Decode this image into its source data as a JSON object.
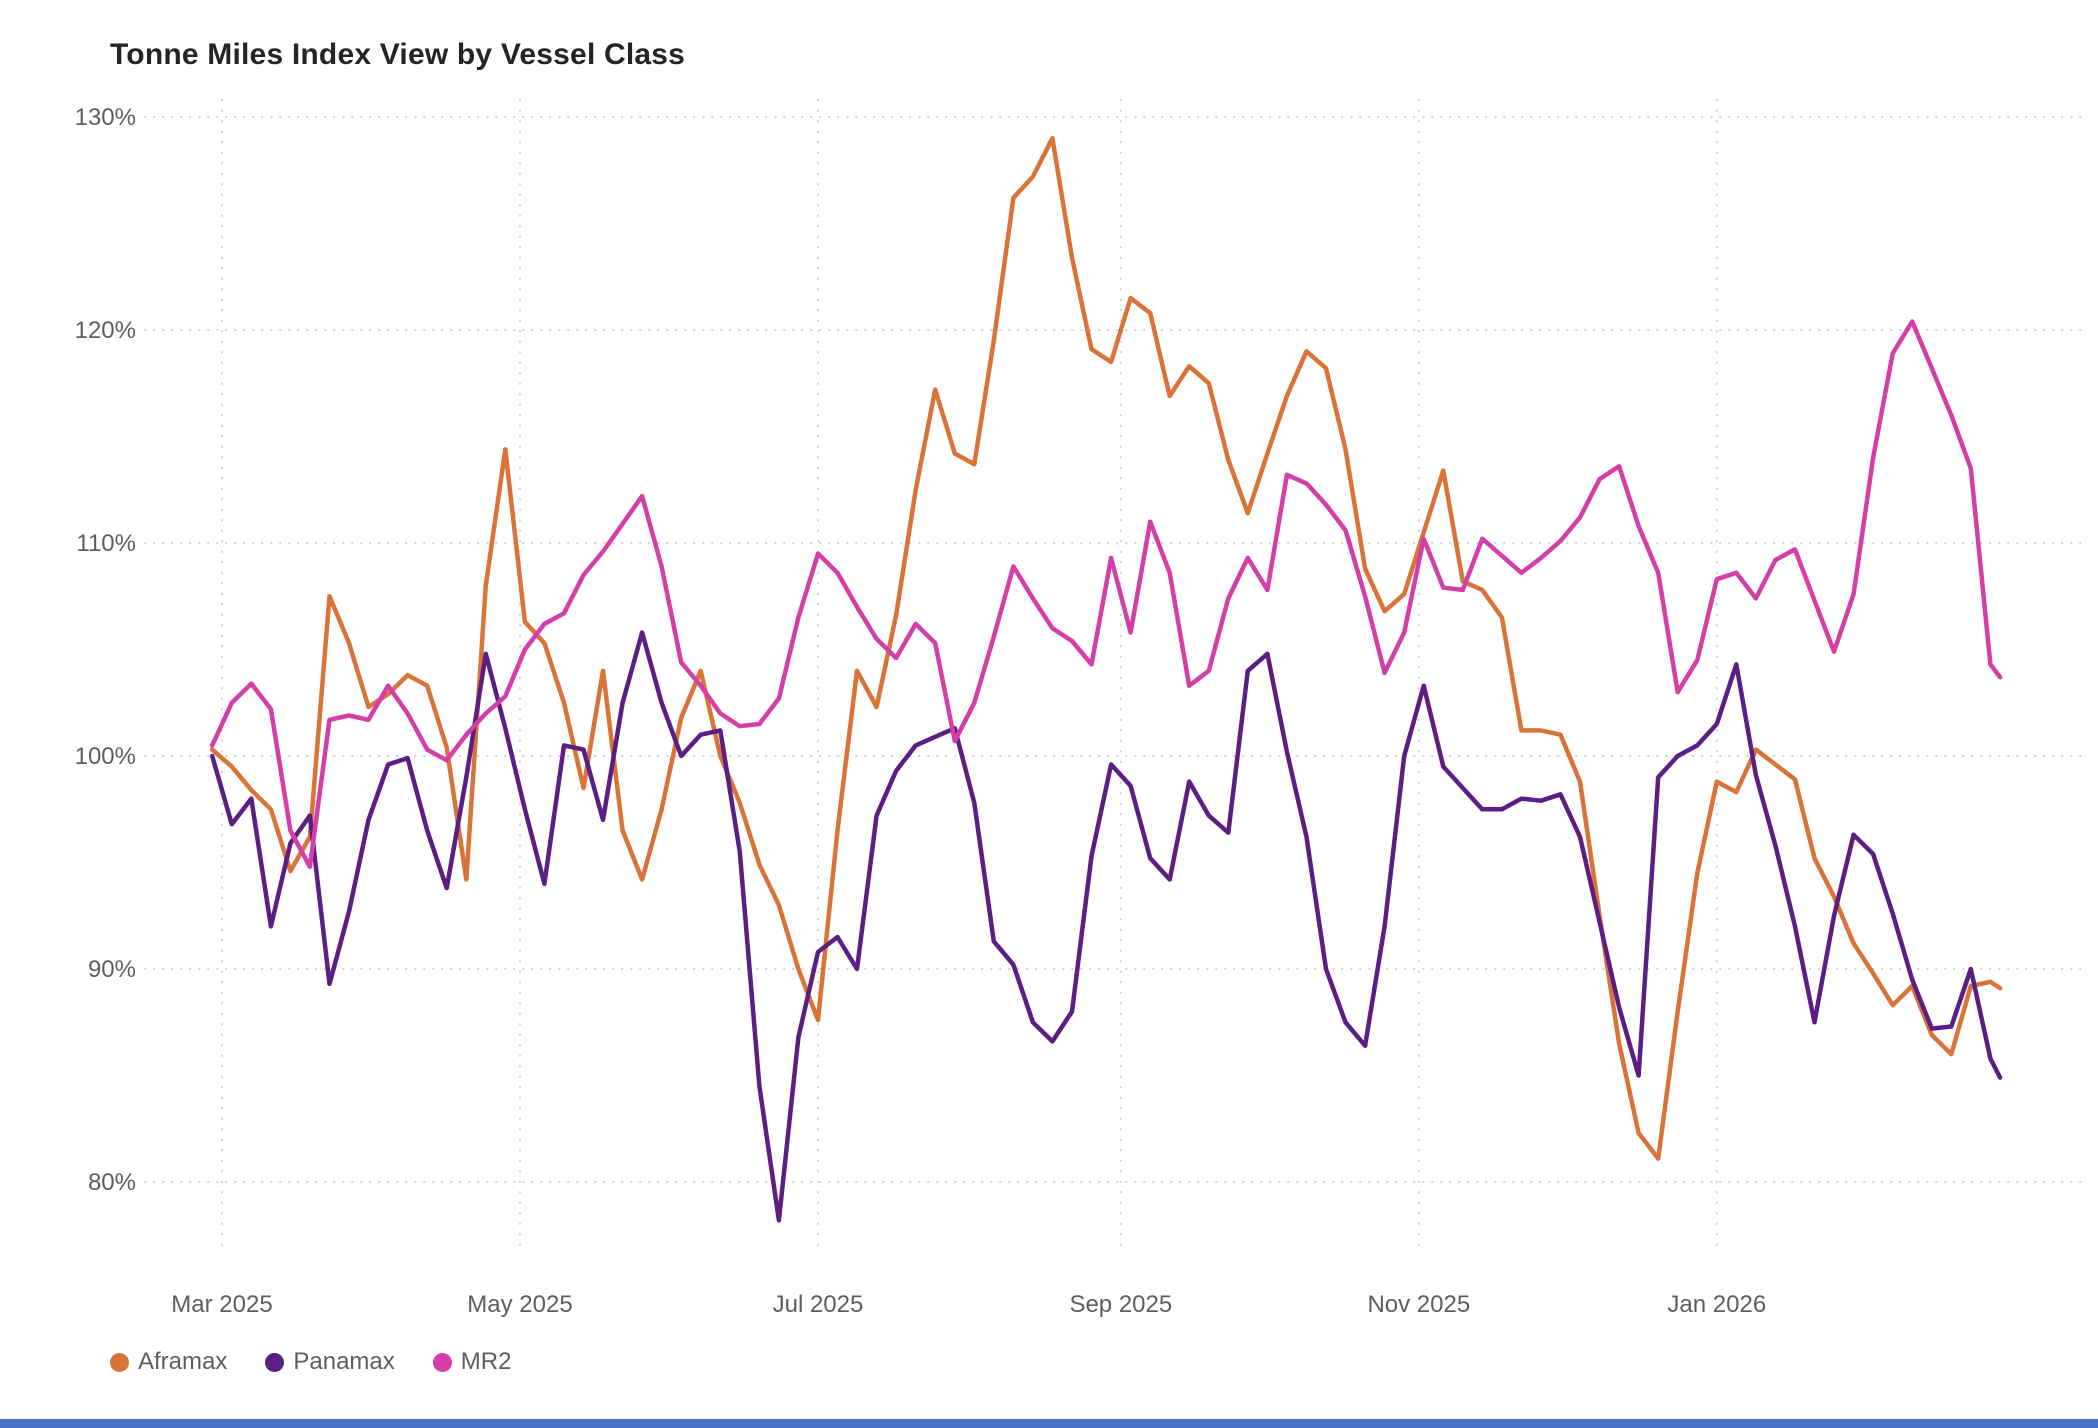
{
  "title": "Tonne Miles Index View by Vessel Class",
  "legend": {
    "items": [
      {
        "label": "Aframax",
        "color": "#D97338"
      },
      {
        "label": "Panamax",
        "color": "#5C1E82"
      },
      {
        "label": "MR2",
        "color": "#D33EA8"
      }
    ]
  },
  "accent_bar_color": "#4472C4",
  "grid_color": "#D1D1D1",
  "axis_text_color": "#605E5C",
  "chart_data": {
    "type": "line",
    "title": "Tonne Miles Index View by Vessel Class",
    "xlabel": "",
    "ylabel": "",
    "grid": "dotted",
    "legend_position": "bottom-left",
    "y_axis": {
      "tick_values": [
        130,
        120,
        110,
        100,
        90,
        80
      ],
      "tick_labels": [
        "130%",
        "120%",
        "110%",
        "100%",
        "90%",
        "80%"
      ],
      "range": [
        76.4,
        130.8
      ]
    },
    "x_axis": {
      "tick_dates": [
        "2025-03-01",
        "2025-05-01",
        "2025-07-01",
        "2025-09-01",
        "2025-11-01",
        "2026-01-01"
      ],
      "tick_labels": [
        "Mar 2025",
        "May 2025",
        "Jul 2025",
        "Sep 2025",
        "Nov 2025",
        "Jan 2026"
      ],
      "range": [
        "2025-02-27",
        "2026-02-28"
      ]
    },
    "dates": [
      "2025-02-27",
      "2025-03-03",
      "2025-03-07",
      "2025-03-11",
      "2025-03-15",
      "2025-03-19",
      "2025-03-23",
      "2025-03-27",
      "2025-03-31",
      "2025-04-04",
      "2025-04-08",
      "2025-04-12",
      "2025-04-16",
      "2025-04-20",
      "2025-04-24",
      "2025-04-28",
      "2025-05-02",
      "2025-05-06",
      "2025-05-10",
      "2025-05-14",
      "2025-05-18",
      "2025-05-22",
      "2025-05-26",
      "2025-05-30",
      "2025-06-03",
      "2025-06-07",
      "2025-06-11",
      "2025-06-15",
      "2025-06-19",
      "2025-06-23",
      "2025-06-27",
      "2025-07-01",
      "2025-07-05",
      "2025-07-09",
      "2025-07-13",
      "2025-07-17",
      "2025-07-21",
      "2025-07-25",
      "2025-07-29",
      "2025-08-02",
      "2025-08-06",
      "2025-08-10",
      "2025-08-14",
      "2025-08-18",
      "2025-08-22",
      "2025-08-26",
      "2025-08-30",
      "2025-09-03",
      "2025-09-07",
      "2025-09-11",
      "2025-09-15",
      "2025-09-19",
      "2025-09-23",
      "2025-09-27",
      "2025-10-01",
      "2025-10-05",
      "2025-10-09",
      "2025-10-13",
      "2025-10-17",
      "2025-10-21",
      "2025-10-25",
      "2025-10-29",
      "2025-11-02",
      "2025-11-06",
      "2025-11-10",
      "2025-11-14",
      "2025-11-18",
      "2025-11-22",
      "2025-11-26",
      "2025-11-30",
      "2025-12-04",
      "2025-12-08",
      "2025-12-12",
      "2025-12-16",
      "2025-12-20",
      "2025-12-24",
      "2025-12-28",
      "2026-01-01",
      "2026-01-05",
      "2026-01-09",
      "2026-01-13",
      "2026-01-17",
      "2026-01-21",
      "2026-01-25",
      "2026-01-29",
      "2026-02-02",
      "2026-02-06",
      "2026-02-10",
      "2026-02-14",
      "2026-02-18",
      "2026-02-22",
      "2026-02-26",
      "2026-02-28"
    ],
    "series": [
      {
        "name": "Aframax",
        "color": "#D97338",
        "values": [
          100.3,
          99.5,
          98.4,
          97.5,
          94.6,
          96.2,
          107.5,
          105.3,
          102.3,
          102.9,
          103.8,
          103.3,
          100.4,
          94.2,
          108.0,
          114.4,
          106.3,
          105.3,
          102.5,
          98.5,
          104.0,
          96.5,
          94.2,
          97.5,
          101.8,
          104.0,
          100.0,
          97.8,
          94.9,
          93.0,
          90.0,
          87.6,
          96.5,
          104.0,
          102.3,
          106.6,
          112.5,
          117.2,
          114.2,
          113.7,
          119.5,
          126.2,
          127.2,
          129.0,
          123.4,
          119.1,
          118.5,
          121.5,
          120.8,
          116.9,
          118.3,
          117.5,
          113.9,
          111.4,
          114.2,
          116.9,
          119.0,
          118.2,
          114.4,
          108.8,
          106.8,
          107.6,
          110.5,
          113.4,
          108.2,
          107.8,
          106.5,
          101.2,
          101.2,
          101.0,
          98.8,
          92.5,
          86.5,
          82.3,
          81.1,
          88.0,
          94.5,
          98.8,
          98.3,
          100.3,
          99.6,
          98.9,
          95.2,
          93.4,
          91.2,
          89.8,
          88.3,
          89.2,
          86.9,
          86.0,
          89.2,
          89.4,
          89.1
        ]
      },
      {
        "name": "Panamax",
        "color": "#5C1E82",
        "values": [
          100.0,
          96.8,
          98.0,
          92.0,
          95.9,
          97.2,
          89.3,
          92.7,
          97.0,
          99.6,
          99.9,
          96.5,
          93.8,
          99.0,
          104.8,
          101.3,
          97.5,
          94.0,
          100.5,
          100.3,
          97.0,
          102.5,
          105.8,
          102.5,
          100.0,
          101.0,
          101.2,
          95.5,
          84.5,
          78.2,
          86.8,
          90.8,
          91.5,
          90.0,
          97.2,
          99.3,
          100.5,
          100.9,
          101.3,
          97.8,
          91.3,
          90.2,
          87.5,
          86.6,
          88.0,
          95.3,
          99.6,
          98.6,
          95.2,
          94.2,
          98.8,
          97.2,
          96.4,
          104.0,
          104.8,
          100.2,
          96.2,
          90.0,
          87.5,
          86.4,
          92.0,
          100.0,
          103.3,
          99.5,
          98.5,
          97.5,
          97.5,
          98.0,
          97.9,
          98.2,
          96.2,
          92.2,
          88.2,
          85.0,
          99.0,
          100.0,
          100.5,
          101.5,
          104.3,
          99.1,
          95.8,
          92.0,
          87.5,
          92.5,
          96.3,
          95.4,
          92.6,
          89.5,
          87.2,
          87.3,
          90.0,
          85.8,
          84.9
        ]
      },
      {
        "name": "MR2",
        "color": "#D33EA8",
        "values": [
          100.5,
          102.5,
          103.4,
          102.2,
          96.5,
          94.8,
          101.7,
          101.9,
          101.7,
          103.3,
          102.0,
          100.3,
          99.8,
          101.0,
          102.0,
          102.8,
          105.0,
          106.2,
          106.7,
          108.5,
          109.6,
          110.9,
          112.2,
          108.9,
          104.4,
          103.3,
          102.0,
          101.4,
          101.5,
          102.7,
          106.5,
          109.5,
          108.6,
          107.0,
          105.5,
          104.6,
          106.2,
          105.3,
          100.7,
          102.5,
          105.6,
          108.9,
          107.4,
          106.0,
          105.4,
          104.3,
          109.3,
          105.8,
          111.0,
          108.6,
          103.3,
          104.0,
          107.4,
          109.3,
          107.8,
          113.2,
          112.8,
          111.8,
          110.6,
          107.5,
          103.9,
          105.8,
          110.2,
          107.9,
          107.8,
          110.2,
          109.4,
          108.6,
          109.3,
          110.1,
          111.2,
          113.0,
          113.6,
          110.8,
          108.6,
          103.0,
          104.5,
          108.3,
          108.6,
          107.4,
          109.2,
          109.7,
          107.3,
          104.9,
          107.6,
          114.0,
          118.9,
          120.4,
          118.2,
          116.0,
          113.5,
          104.3,
          103.7
        ]
      }
    ]
  }
}
